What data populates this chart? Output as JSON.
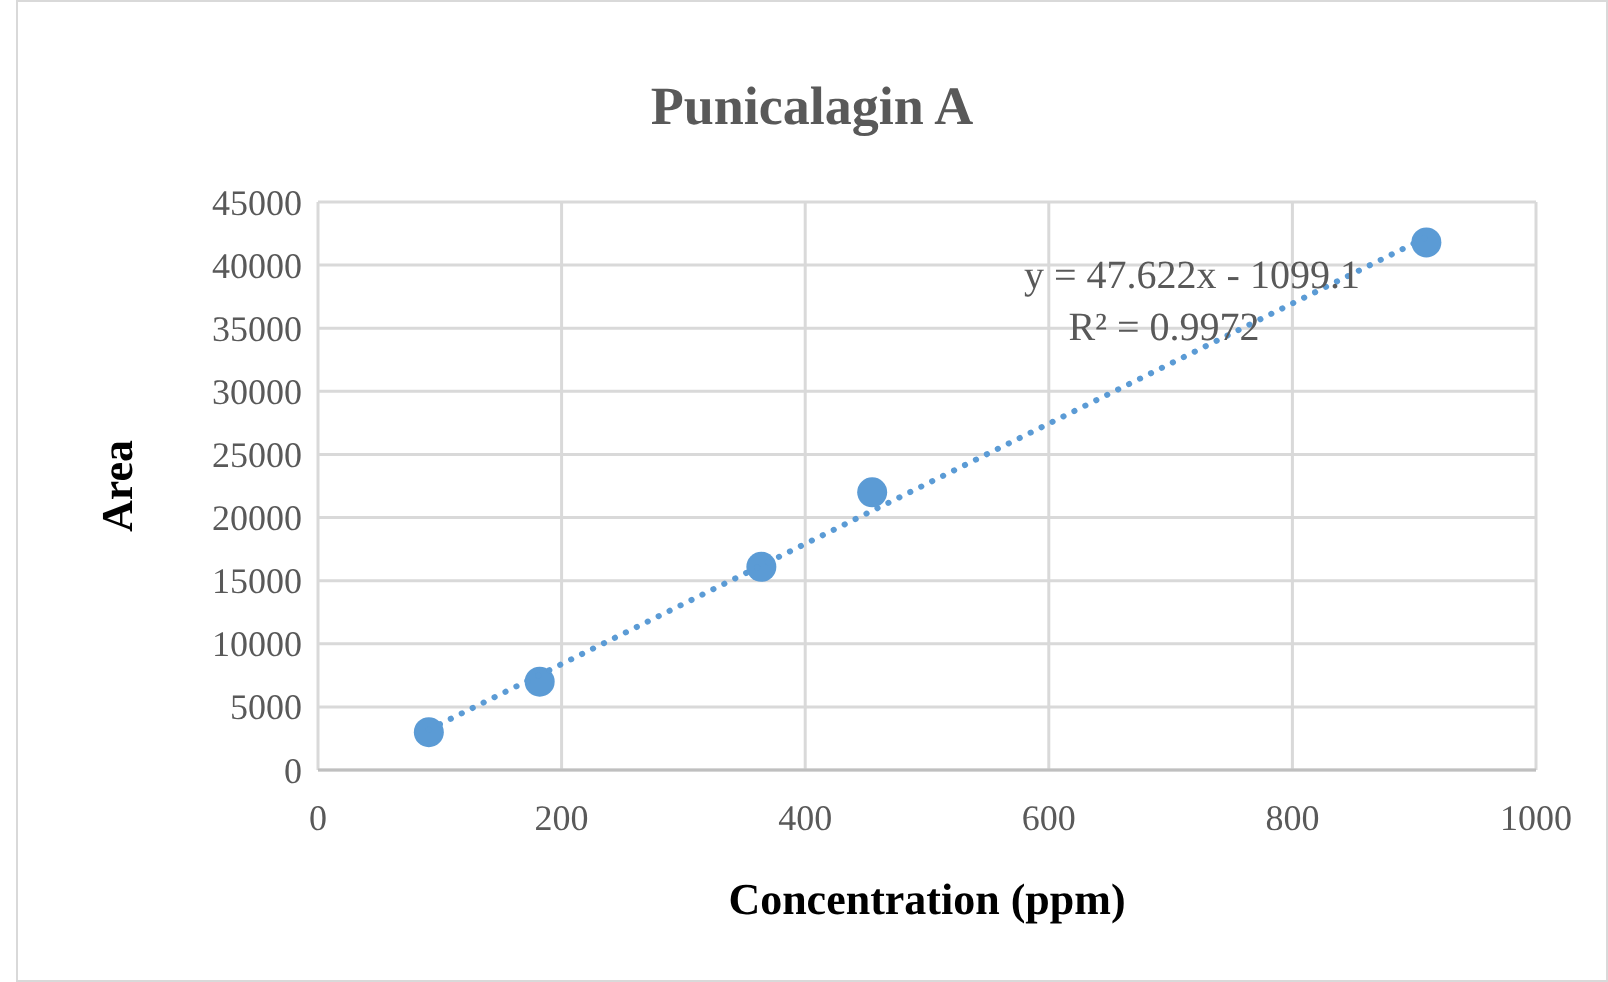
{
  "chart_data": {
    "type": "scatter",
    "title": "Punicalagin A",
    "xlabel": "Concentration (ppm)",
    "ylabel": "Area",
    "x": [
      91,
      182,
      364,
      455,
      910
    ],
    "series": [
      {
        "color": "#5b9bd5",
        "values": [
          3000,
          7000,
          16100,
          22000,
          41800
        ],
        "marker": "circle"
      },
      {
        "type": "line",
        "color": "#5b9bd5",
        "x": [
          91,
          910
        ],
        "values": [
          3200,
          42200
        ],
        "line_style": "dotted",
        "marker": "none"
      }
    ],
    "xlim": [
      0,
      1000
    ],
    "xticks": [
      0,
      200,
      400,
      600,
      800,
      1000
    ],
    "ylim": [
      0,
      45000
    ],
    "yticks": [
      0,
      5000,
      10000,
      15000,
      20000,
      25000,
      30000,
      35000,
      40000,
      45000
    ],
    "grid": true,
    "annotations": [
      "y = 47.622x - 1099.1",
      "R² = 0.9972"
    ]
  }
}
